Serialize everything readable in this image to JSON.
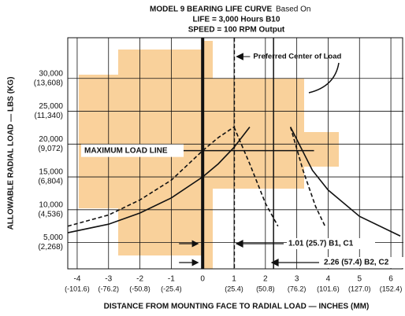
{
  "chart_data": {
    "type": "line",
    "title": "MODEL 9 BEARING LIFE CURVE",
    "title_suffix": "Based On",
    "subtitle_lines": [
      "LIFE = 3,000 Hours B10",
      "SPEED = 100 RPM Output"
    ],
    "y_label": "ALLOWABLE RADIAL LOAD — LBS (KG)",
    "x_label": "DISTANCE FROM MOUNTING FACE TO RADIAL LOAD — INCHES (MM)",
    "xlim": [
      -4.3,
      6.4
    ],
    "ylim": [
      1000,
      36200
    ],
    "xticks": [
      {
        "value": -4,
        "label": "-4",
        "mm": "(-101.6)"
      },
      {
        "value": -3,
        "label": "-3",
        "mm": "(-76.2)"
      },
      {
        "value": -2,
        "label": "-2",
        "mm": "(-50.8)"
      },
      {
        "value": -1,
        "label": "-1",
        "mm": "(-25.4)"
      },
      0,
      {
        "value": 1,
        "label": "1",
        "mm": "(25.4)"
      },
      {
        "value": 2,
        "label": "2",
        "mm": "(50.8)"
      },
      {
        "value": 3,
        "label": "3",
        "mm": "(76.2)"
      },
      {
        "value": 4,
        "label": "4",
        "mm": "(101.6)"
      },
      {
        "value": 5,
        "label": "5",
        "mm": "(127.0)"
      },
      {
        "value": 6,
        "label": "6",
        "mm": "(152.4)"
      }
    ],
    "yticks": [
      {
        "value": 5000,
        "label": "5,000",
        "kg": "(2,268)"
      },
      {
        "value": 10000,
        "label": "10,000",
        "kg": "(4,536)"
      },
      {
        "value": 15000,
        "label": "15,000",
        "kg": "(6,804)"
      },
      {
        "value": 20000,
        "label": "20,000",
        "kg": "(9,072)"
      },
      {
        "value": 25000,
        "label": "25,000",
        "kg": "(11,340)"
      },
      {
        "value": 30000,
        "label": "30,000",
        "kg": "(13,608)"
      }
    ],
    "grid": true,
    "series": [
      {
        "style": "solid",
        "color": "#111111",
        "x": [
          -4.3,
          -3,
          -2,
          -1,
          0,
          0.5,
          1,
          1.5
        ],
        "values": [
          6500,
          7800,
          9500,
          11800,
          15000,
          17000,
          19500,
          22600
        ]
      },
      {
        "style": "dashed",
        "color": "#111111",
        "x": [
          -4.3,
          -3,
          -2,
          -1,
          0,
          0.5,
          1.0
        ],
        "values": [
          7500,
          9200,
          11500,
          14500,
          19000,
          21000,
          22600
        ]
      },
      {
        "style": "dashed",
        "color": "#111111",
        "x": [
          1.0,
          1.5,
          2.0,
          2.4
        ],
        "values": [
          22600,
          17000,
          11000,
          7500
        ]
      },
      {
        "style": "solid",
        "color": "#111111",
        "x": [
          2.8,
          3.5,
          4,
          5,
          6.3
        ],
        "values": [
          22600,
          16000,
          13000,
          9000,
          6000
        ]
      },
      {
        "style": "dashed",
        "color": "#111111",
        "x": [
          2.8,
          3.2,
          3.6,
          3.9
        ],
        "values": [
          22600,
          16000,
          10500,
          7500
        ]
      }
    ],
    "reference_lines": [
      {
        "x": 0,
        "style": "thick"
      },
      {
        "x": 1.01,
        "style": "dashed",
        "label": "Preferred Center of Load"
      },
      {
        "x": 2.26,
        "style": "solid"
      }
    ],
    "max_load_line": {
      "y": 19000,
      "label": "MAXIMUM LOAD LINE"
    },
    "annotations": [
      "1.01 (25.7) B1, C1",
      "2.26 (57.4) B2, C2"
    ]
  }
}
